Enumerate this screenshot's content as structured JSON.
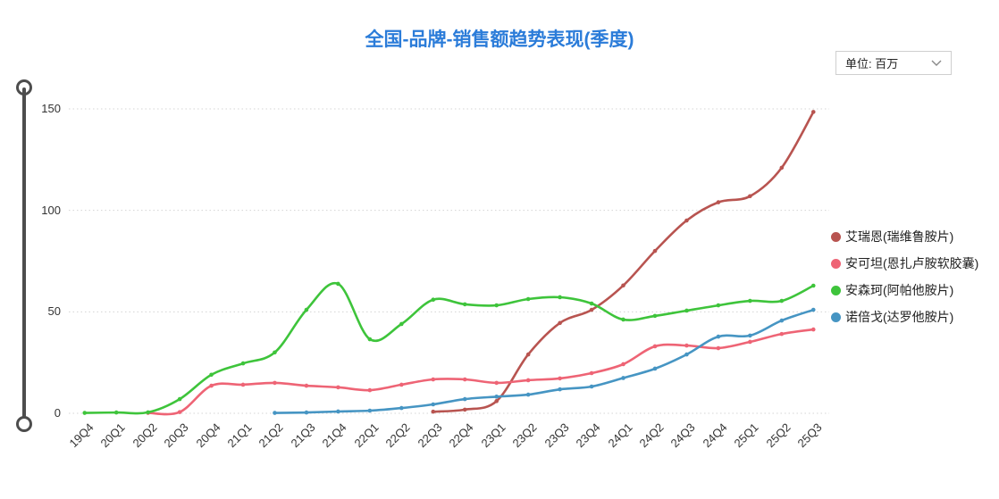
{
  "title": "全国-品牌-销售额趋势表现(季度)",
  "unit_selector": {
    "label": "单位: 百万"
  },
  "colors": {
    "title": "#2b7cd9",
    "grid": "#d4d4d4",
    "axis_text": "#333333",
    "slider": "#4d4d4d"
  },
  "chart_data": {
    "type": "line",
    "smooth": true,
    "grid": "dotted horizontal",
    "legend_position": "right",
    "title": "全国-品牌-销售额趋势表现(季度)",
    "xlabel": "",
    "ylabel": "",
    "ylim": [
      0,
      150
    ],
    "yticks": [
      0,
      50,
      100,
      150
    ],
    "categories": [
      "19Q4",
      "20Q1",
      "20Q2",
      "20Q3",
      "20Q4",
      "21Q1",
      "21Q2",
      "21Q3",
      "21Q4",
      "22Q1",
      "22Q2",
      "22Q3",
      "22Q4",
      "23Q1",
      "23Q2",
      "23Q3",
      "23Q4",
      "24Q1",
      "24Q2",
      "24Q3",
      "24Q4",
      "25Q1",
      "25Q2",
      "25Q3"
    ],
    "series": [
      {
        "name": "艾瑞恩(瑞维鲁胺片)",
        "color": "#b85450",
        "values": [
          null,
          null,
          null,
          null,
          null,
          null,
          null,
          null,
          null,
          null,
          null,
          0.8,
          1.8,
          6,
          29,
          44.5,
          51,
          63,
          80,
          95,
          104,
          107,
          121,
          148.5
        ]
      },
      {
        "name": "安可坦(恩扎卢胺软胶囊)",
        "color": "#ee6475",
        "values": [
          null,
          null,
          0.2,
          0.6,
          13.6,
          14.1,
          15,
          13.6,
          12.8,
          11.4,
          14.1,
          16.7,
          16.7,
          15,
          16.3,
          17.2,
          19.8,
          24.2,
          33,
          33.4,
          32.1,
          35.2,
          39.1,
          41.3
        ]
      },
      {
        "name": "安森珂(阿帕他胺片)",
        "color": "#3ec43b",
        "values": [
          0.2,
          0.4,
          0.5,
          7,
          19,
          24.6,
          30,
          51,
          63.8,
          36.5,
          44,
          56,
          53.7,
          53.2,
          56.3,
          57.2,
          54.1,
          46.2,
          48,
          50.6,
          53.2,
          55.4,
          55.4,
          62.9
        ]
      },
      {
        "name": "诺倍戈(达罗他胺片)",
        "color": "#4695c3",
        "values": [
          null,
          null,
          null,
          null,
          null,
          null,
          0.2,
          0.4,
          0.9,
          1.3,
          2.6,
          4.4,
          7,
          8.2,
          9.2,
          11.8,
          13.2,
          17.4,
          22,
          29,
          37.8,
          38.3,
          45.7,
          51
        ]
      }
    ]
  }
}
